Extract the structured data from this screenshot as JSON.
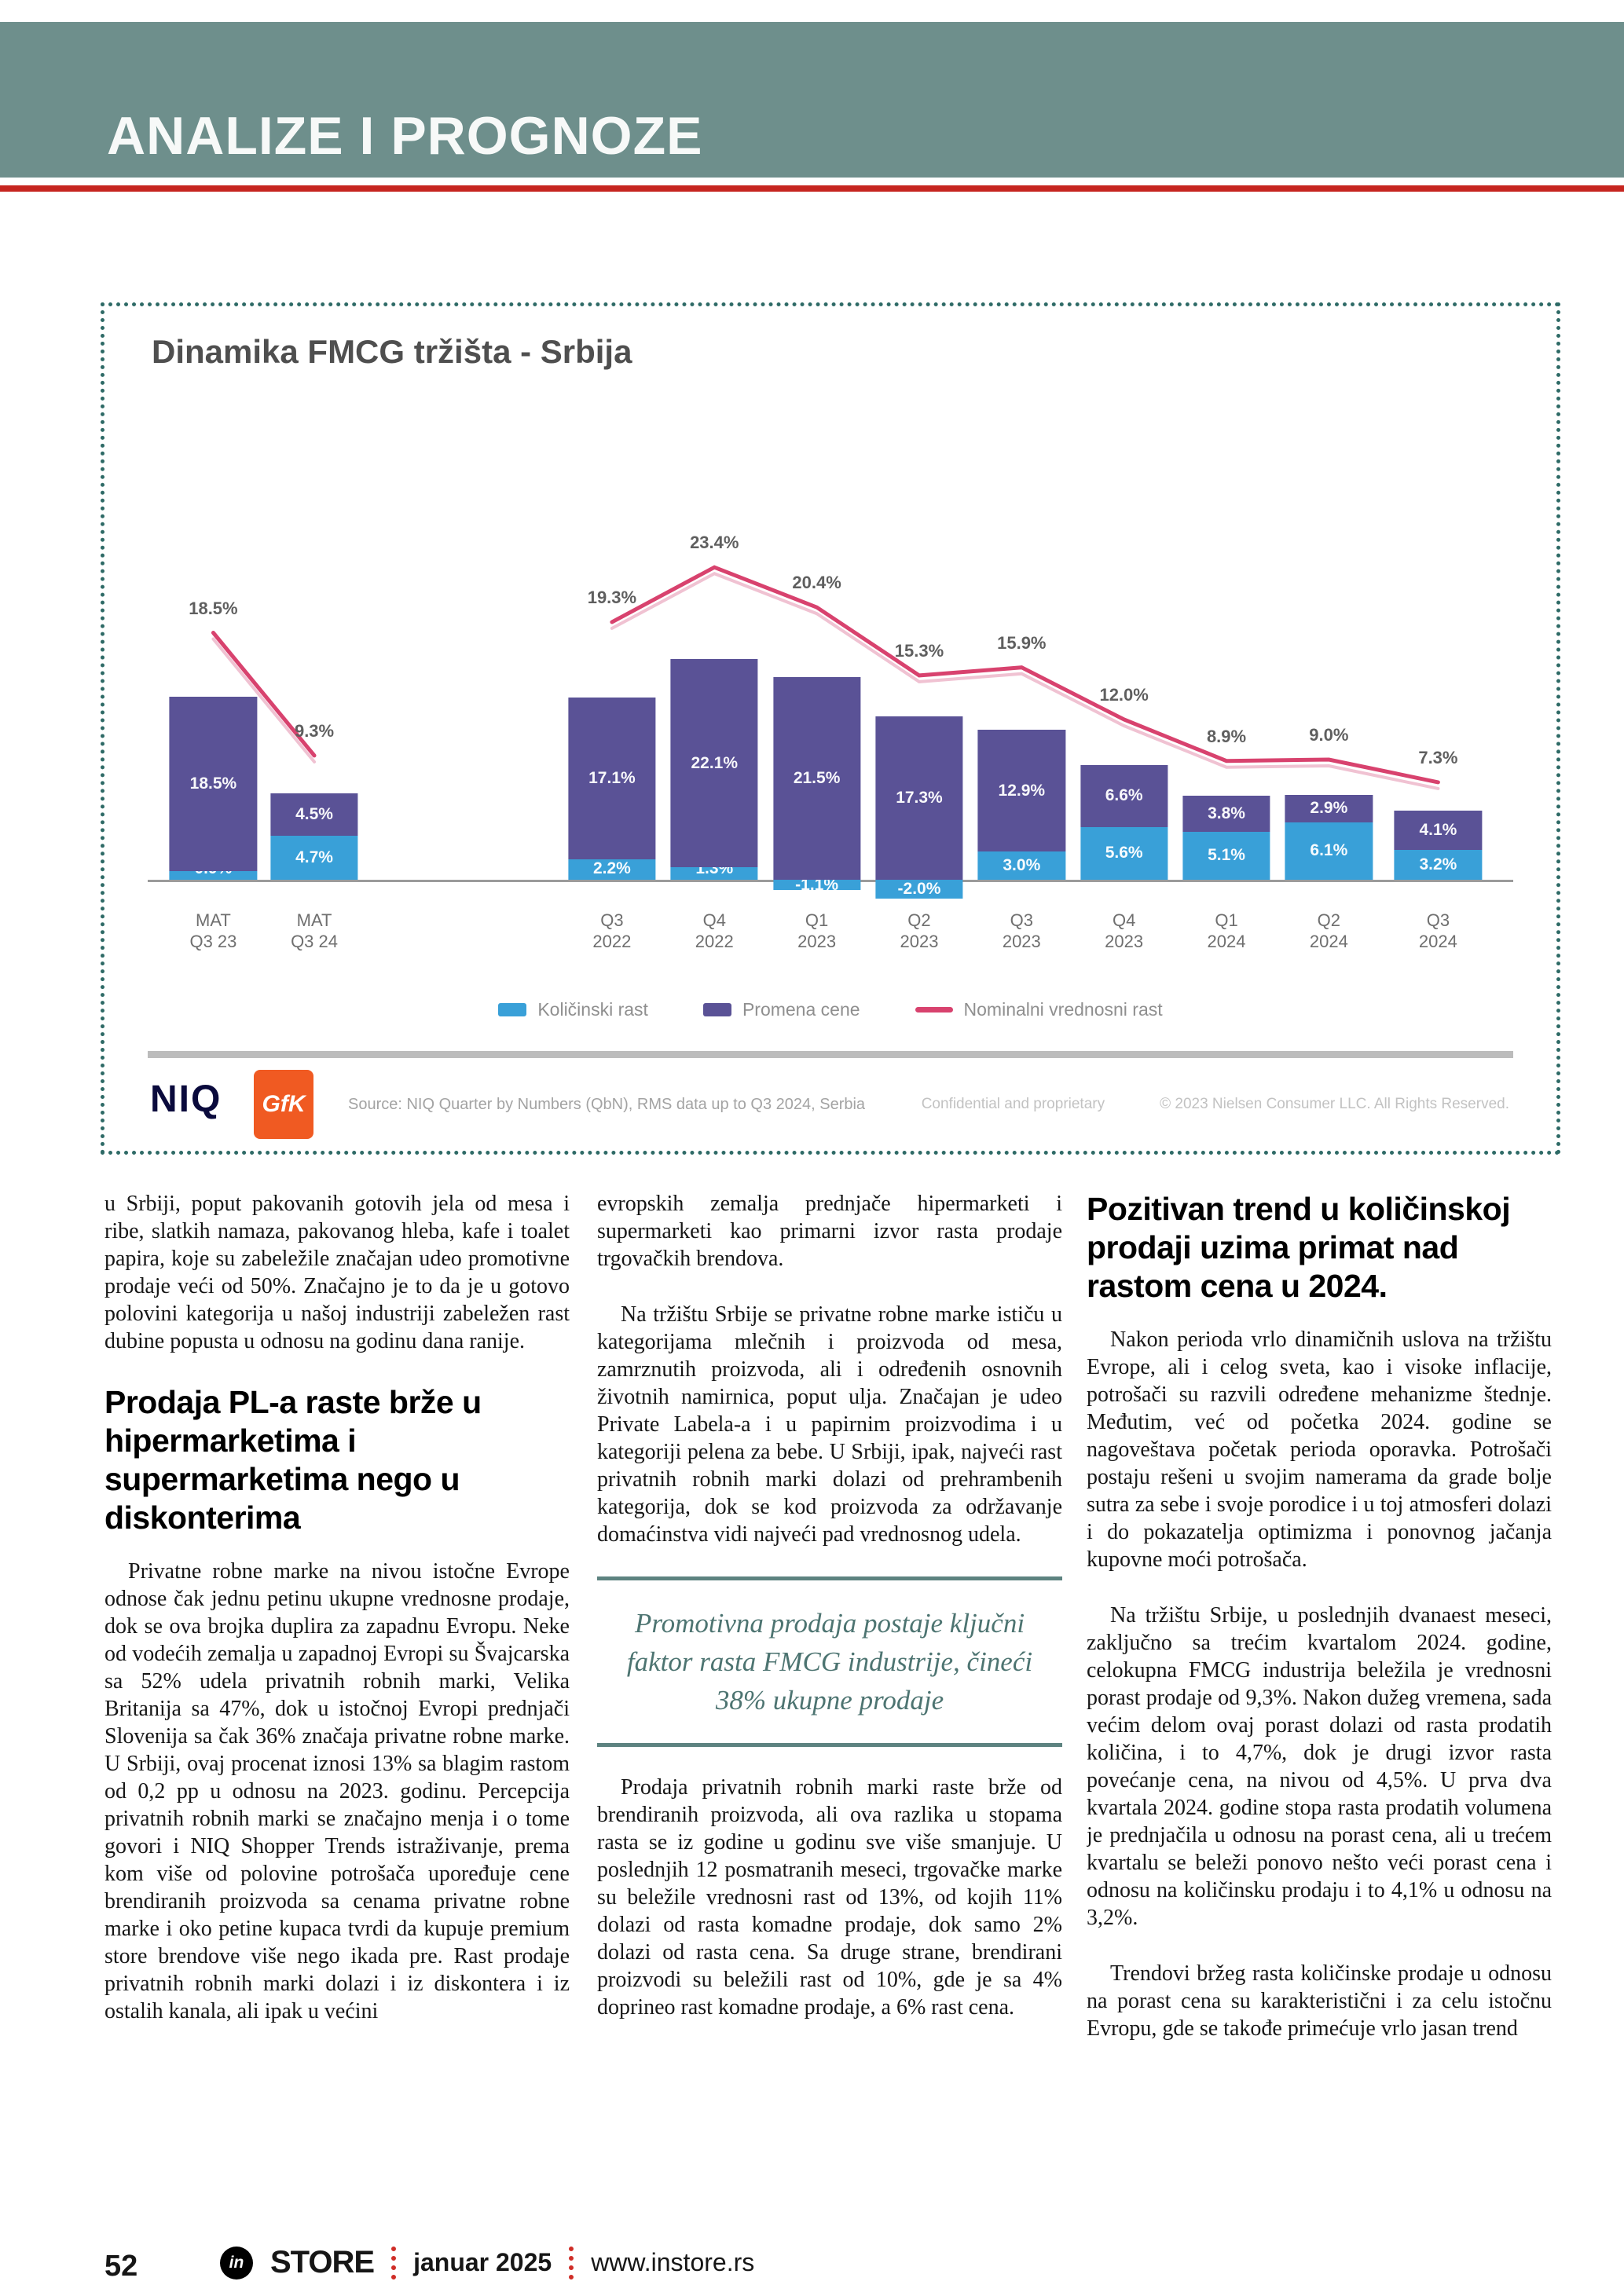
{
  "header": {
    "title": "ANALIZE I PROGNOZE"
  },
  "chart_panel": {
    "title": "Dinamika FMCG tržišta - Srbija",
    "niq_logo": "NIQ",
    "gfk_logo": "GfK",
    "source": "Source: NIQ Quarter by Numbers (QbN), RMS data up to Q3 2024, Serbia",
    "confidential": "Confidential and proprietary",
    "copyright": "© 2023 Nielsen Consumer LLC. All Rights Reserved."
  },
  "chart_data": {
    "type": "bar",
    "subtype": "stacked-bars-with-line",
    "title": "Dinamika FMCG tržišta - Srbija",
    "categories": [
      {
        "l1": "MAT",
        "l2": "Q3 23"
      },
      {
        "l1": "MAT",
        "l2": "Q3 24"
      },
      {
        "l1": "Q3",
        "l2": "2022"
      },
      {
        "l1": "Q4",
        "l2": "2022"
      },
      {
        "l1": "Q1",
        "l2": "2023"
      },
      {
        "l1": "Q2",
        "l2": "2023"
      },
      {
        "l1": "Q3",
        "l2": "2023"
      },
      {
        "l1": "Q4",
        "l2": "2023"
      },
      {
        "l1": "Q1",
        "l2": "2024"
      },
      {
        "l1": "Q2",
        "l2": "2024"
      },
      {
        "l1": "Q3",
        "l2": "2024"
      }
    ],
    "series": [
      {
        "name": "Količinski rast",
        "type": "bar",
        "color": "#39a0d8",
        "values": [
          0.9,
          4.7,
          2.2,
          1.3,
          -1.1,
          -2.0,
          3.0,
          5.6,
          5.1,
          6.1,
          3.2
        ]
      },
      {
        "name": "Promena cene",
        "type": "bar",
        "color": "#5a5296",
        "values": [
          18.5,
          4.5,
          17.1,
          22.1,
          21.5,
          17.3,
          12.9,
          6.6,
          3.8,
          2.9,
          4.1
        ]
      },
      {
        "name": "Nominalni vrednosni rast",
        "type": "line",
        "color": "#d8426e",
        "values": [
          18.5,
          9.3,
          19.3,
          23.4,
          20.4,
          15.3,
          15.9,
          12.0,
          8.9,
          9.0,
          7.3
        ]
      }
    ],
    "ylim": [
      -3,
      26
    ],
    "grid": false,
    "legend_position": "bottom",
    "value_suffix": "%"
  },
  "article": {
    "col1": {
      "p1": "u Srbiji, poput pakovanih gotovih jela od mesa i ribe, slatkih namaza, pakovanog hleba, kafe i toalet papira, koje su zabeležile značajan udeo promotivne prodaje veći od 50%. Značajno je to da je u gotovo polovini kategorija u našoj industriji zabeležen rast dubine popusta u odnosu na godinu dana ranije.",
      "h1": "Prodaja PL-a raste brže u hipermarketima i supermarketima nego u diskonterima",
      "p2": "Privatne robne marke na nivou istočne Evrope odnose čak jednu petinu ukupne vrednosne prodaje, dok se ova brojka duplira za zapadnu Evropu. Neke od vodećih zemalja u zapadnoj Evropi su Švajcarska sa 52% udela privatnih robnih marki, Velika Britanija sa 47%, dok u istočnoj Evropi prednjači Slovenija sa čak 36% značaja privatne robne marke. U Srbiji, ovaj procenat iznosi 13% sa blagim rastom od 0,2 pp u odnosu na 2023. godinu. Percepcija privatnih robnih marki se značajno menja i o tome govori i NIQ Shopper Trends istraživanje, prema kom više od polovine potrošača upoređuje cene brendiranih proizvoda sa cenama privatne robne marke i oko petine kupaca tvrdi da kupuje premium store brendove više nego ikada pre. Rast prodaje privatnih robnih marki dolazi i iz diskontera i iz ostalih kanala, ali ipak u većini"
    },
    "col2": {
      "p1": "evropskih zemalja prednjače hipermarketi i supermarketi kao primarni izvor rasta prodaje trgovačkih brendova.",
      "p2": "Na tržištu Srbije se privatne robne marke ističu u kategorijama mlečnih i proizvoda od mesa, zamrznutih proizvoda, ali i određenih osnovnih životnih namirnica, poput ulja. Značajan je udeo Private Labela-a i u papirnim proizvodima i u kategoriji pelena za bebe. U Srbiji, ipak, najveći rast privatnih robnih marki dolazi od prehrambenih kategorija, dok se kod proizvoda za održavanje domaćinstva vidi najveći pad vrednosnog udela.",
      "quote": "Promotivna prodaja postaje ključni faktor rasta FMCG industrije, čineći 38% ukupne prodaje",
      "p3": "Prodaja privatnih robnih marki raste brže od brendiranih proizvoda, ali ova razlika u stopama rasta se iz godine u godinu sve više smanjuje. U poslednjih 12 posmatranih meseci, trgovačke marke su beležile vrednosni rast od 13%, od kojih 11% dolazi od rasta komadne prodaje, dok samo 2% dolazi od rasta cena. Sa druge strane, brendirani proizvodi su beležili rast od 10%, gde je sa 4% doprineo rast komadne prodaje, a 6% rast cena."
    },
    "col3": {
      "h1": "Pozitivan trend u količinskoj prodaji uzima primat nad rastom cena u 2024.",
      "p1": "Nakon perioda vrlo dinamičnih uslova na tržištu Evrope, ali i celog sveta, kao i visoke inflacije, potrošači su razvili određene mehanizme štednje. Međutim, već od početka 2024. godine se nagoveštava početak perioda oporavka. Potrošači postaju rešeni u svojim namerama da grade bolje sutra za sebe i svoje porodice i u toj atmosferi dolazi i do pokazatelja optimizma i ponovnog jačanja kupovne moći potrošača.",
      "p2": "Na tržištu Srbije, u poslednjih dvanaest meseci, zaključno sa trećim kvartalom 2024. godine, celokupna FMCG industrija beležila je vrednosni porast prodaje od 9,3%. Nakon dužeg vremena, sada većim delom ovaj porast dolazi od rasta prodatih količina, i to 4,7%, dok je drugi izvor rasta povećanje cena, na nivou od 4,5%. U prva dva kvartala 2024. godine stopa rasta prodatih volumena je prednjačila u odnosu na porast cena, ali u trećem kvartalu se beleži ponovo nešto veći porast cena i odnosu na količinsku prodaju i to 4,1% u odnosu na 3,2%.",
      "p3": "Trendovi bržeg rasta količinske prodaje u odnosu na porast cena su karakteristični i za celu istočnu Evropu, gde se takođe primećuje vrlo jasan trend"
    }
  },
  "footer": {
    "page": "52",
    "brand_icon": "in",
    "brand": "STORE",
    "date": "januar 2025",
    "site": "www.instore.rs"
  }
}
